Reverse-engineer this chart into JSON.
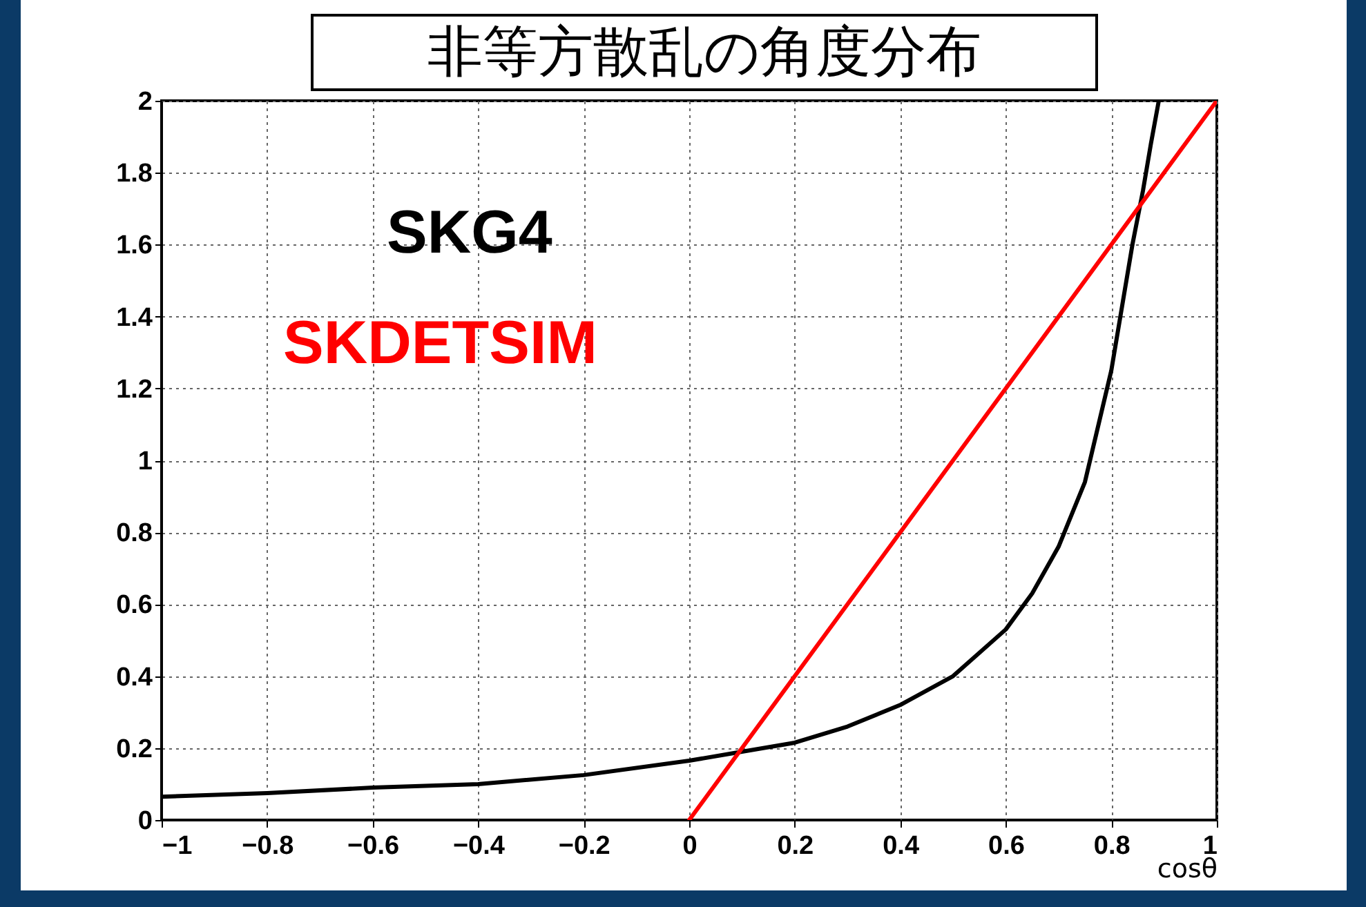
{
  "chart_data": {
    "type": "line",
    "title": "非等方散乱の角度分布",
    "xlabel": "cosθ",
    "xlim": [
      -1,
      1
    ],
    "xticks": [
      -1,
      -0.8,
      -0.6,
      -0.4,
      -0.2,
      0,
      0.2,
      0.4,
      0.6,
      0.8,
      1
    ],
    "ylim": [
      0,
      2
    ],
    "yticks": [
      0,
      0.2,
      0.4,
      0.6,
      0.8,
      1,
      1.2,
      1.4,
      1.6,
      1.8,
      2
    ],
    "grid": true,
    "legend": false,
    "line_style": "solid",
    "marker": "none",
    "series": [
      {
        "name": "SKG4",
        "color": "#000000",
        "x": [
          -1,
          -0.8,
          -0.6,
          -0.4,
          -0.2,
          0,
          0.1,
          0.2,
          0.3,
          0.4,
          0.5,
          0.6,
          0.65,
          0.7,
          0.75,
          0.8,
          0.84,
          0.86,
          0.875,
          0.89
        ],
        "values": [
          0.065,
          0.075,
          0.09,
          0.1,
          0.125,
          0.165,
          0.19,
          0.215,
          0.26,
          0.32,
          0.4,
          0.53,
          0.63,
          0.76,
          0.94,
          1.25,
          1.6,
          1.75,
          1.88,
          2.0
        ]
      },
      {
        "name": "SKDETSIM",
        "color": "#ff0000",
        "x": [
          0,
          1
        ],
        "values": [
          0,
          2
        ]
      }
    ]
  }
}
